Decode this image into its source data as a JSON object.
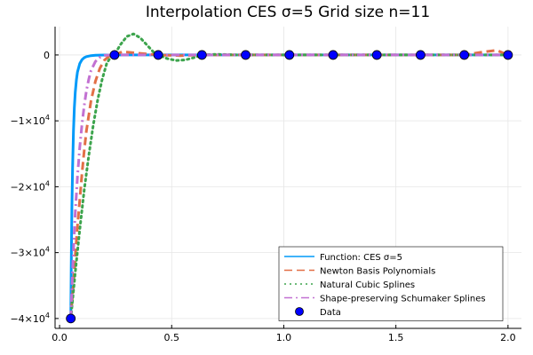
{
  "chart_data": {
    "type": "line",
    "title": "Interpolation CES σ=5 Grid size n=11",
    "xlabel": "",
    "ylabel": "",
    "xlim": [
      -0.02,
      2.06
    ],
    "ylim": [
      -41500,
      4300
    ],
    "grid": true,
    "legend_position": "bottom-right",
    "x_ticks": [
      {
        "value": 0.0,
        "label": "0.0"
      },
      {
        "value": 0.5,
        "label": "0.5"
      },
      {
        "value": 1.0,
        "label": "1.0"
      },
      {
        "value": 1.5,
        "label": "1.5"
      },
      {
        "value": 2.0,
        "label": "2.0"
      }
    ],
    "y_ticks": [
      {
        "value": 0,
        "label": "0",
        "exp": ""
      },
      {
        "value": -10000,
        "label": "−1×10",
        "exp": "4"
      },
      {
        "value": -20000,
        "label": "−2×10",
        "exp": "4"
      },
      {
        "value": -30000,
        "label": "−3×10",
        "exp": "4"
      },
      {
        "value": -40000,
        "label": "−4×10",
        "exp": "4"
      }
    ],
    "series": [
      {
        "name": "Function: CES σ=5",
        "color": "#009af9",
        "style": "solid",
        "x": [
          0.05,
          0.052,
          0.055,
          0.058,
          0.062,
          0.066,
          0.07,
          0.075,
          0.08,
          0.09,
          0.1,
          0.11,
          0.12,
          0.14,
          0.16,
          0.18,
          0.2,
          0.24,
          0.3,
          0.5,
          1.0,
          1.5,
          2.0
        ],
        "y": [
          -40000,
          -32300,
          -23400,
          -17200,
          -11600,
          -8000,
          -5700,
          -3800,
          -2600,
          -1300,
          -710,
          -410,
          -250,
          -100,
          -47,
          -24,
          -13,
          -4,
          -1,
          0,
          0,
          0,
          0
        ]
      },
      {
        "name": "Newton Basis Polynomials",
        "color": "#e26f46",
        "style": "dashed",
        "x": [
          0.05,
          0.06,
          0.07,
          0.08,
          0.09,
          0.1,
          0.11,
          0.12,
          0.14,
          0.16,
          0.18,
          0.2,
          0.22,
          0.245,
          0.28,
          0.34,
          0.44,
          0.54,
          0.64,
          0.8,
          1.0,
          1.2,
          1.4,
          1.6,
          1.8,
          1.9,
          1.95,
          2.0
        ],
        "y": [
          -40000,
          -35500,
          -30500,
          -26000,
          -22000,
          -18000,
          -14500,
          -11500,
          -7000,
          -4000,
          -2000,
          -800,
          -200,
          0,
          500,
          300,
          0,
          -100,
          0,
          0,
          0,
          0,
          0,
          0,
          0,
          500,
          700,
          0
        ]
      },
      {
        "name": "Natural Cubic Splines",
        "color": "#3da44d",
        "style": "dotted",
        "x": [
          0.05,
          0.07,
          0.09,
          0.11,
          0.13,
          0.15,
          0.17,
          0.19,
          0.21,
          0.23,
          0.245,
          0.27,
          0.3,
          0.33,
          0.36,
          0.39,
          0.42,
          0.44,
          0.48,
          0.52,
          0.56,
          0.6,
          0.64,
          0.7,
          0.8,
          1.0,
          1.5,
          2.0
        ],
        "y": [
          -40000,
          -33000,
          -26500,
          -20500,
          -15300,
          -10700,
          -6800,
          -3700,
          -1300,
          -200,
          0,
          1500,
          2800,
          3200,
          2600,
          1500,
          400,
          0,
          -550,
          -850,
          -750,
          -400,
          0,
          100,
          0,
          0,
          0,
          0
        ]
      },
      {
        "name": "Shape-preserving Schumaker Splines",
        "color": "#c271d2",
        "style": "dashdot",
        "x": [
          0.05,
          0.06,
          0.07,
          0.08,
          0.09,
          0.1,
          0.11,
          0.12,
          0.13,
          0.14,
          0.16,
          0.18,
          0.2,
          0.22,
          0.245,
          0.44,
          0.64,
          1.0,
          1.5,
          2.0
        ],
        "y": [
          -40000,
          -31000,
          -24000,
          -18500,
          -14000,
          -10500,
          -7700,
          -5400,
          -3700,
          -2400,
          -1000,
          -350,
          -80,
          -10,
          0,
          0,
          0,
          0,
          0,
          0
        ]
      }
    ],
    "data_points": {
      "name": "Data",
      "color": "#0000ff",
      "x": [
        0.05,
        0.245,
        0.44,
        0.635,
        0.83,
        1.025,
        1.22,
        1.415,
        1.61,
        1.805,
        2.0
      ],
      "y": [
        -40000,
        0,
        0,
        0,
        0,
        0,
        0,
        0,
        0,
        0,
        0
      ]
    }
  }
}
